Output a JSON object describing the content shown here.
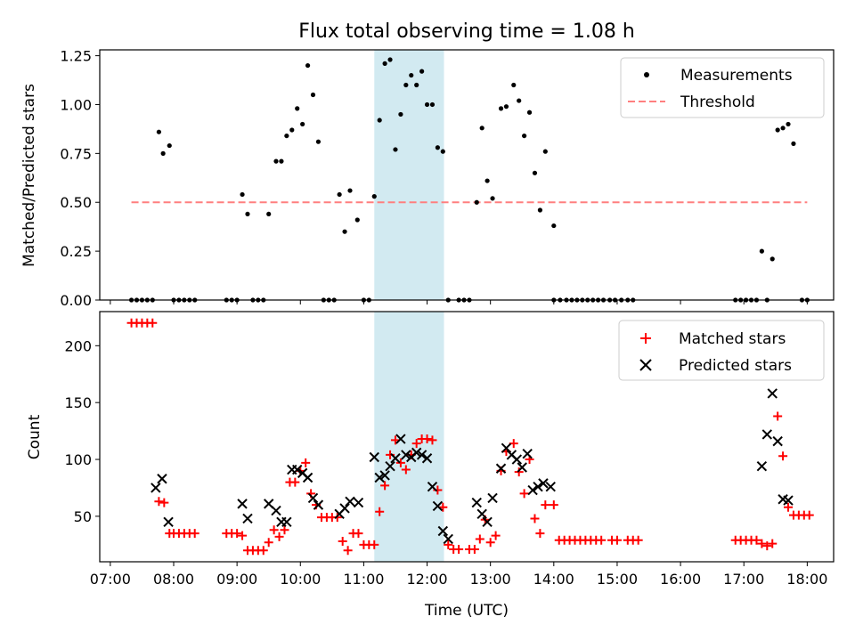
{
  "chart_data": [
    {
      "type": "scatter",
      "title": "Flux total observing time = 1.08 h",
      "xlabel": "",
      "ylabel": "Matched/Predicted stars",
      "ylim": [
        0,
        1.28
      ],
      "xlim": [
        "06:50",
        "18:25"
      ],
      "yticks": [
        "0.00",
        "0.25",
        "0.50",
        "0.75",
        "1.00",
        "1.25"
      ],
      "highlight_span": {
        "start": "11:10",
        "end": "12:16"
      },
      "legend_position": "top-right",
      "series": [
        {
          "name": "Measurements",
          "marker": "dot",
          "color": "#000000",
          "points": [
            [
              "07:20",
              0
            ],
            [
              "07:25",
              0
            ],
            [
              "07:30",
              0
            ],
            [
              "07:35",
              0
            ],
            [
              "07:40",
              0
            ],
            [
              "07:46",
              0.86
            ],
            [
              "07:50",
              0.75
            ],
            [
              "07:56",
              0.79
            ],
            [
              "08:00",
              0
            ],
            [
              "08:05",
              0
            ],
            [
              "08:10",
              0
            ],
            [
              "08:15",
              0
            ],
            [
              "08:20",
              0
            ],
            [
              "08:50",
              0
            ],
            [
              "08:55",
              0
            ],
            [
              "09:00",
              0
            ],
            [
              "09:05",
              0.54
            ],
            [
              "09:10",
              0.44
            ],
            [
              "09:15",
              0
            ],
            [
              "09:20",
              0
            ],
            [
              "09:25",
              0
            ],
            [
              "09:30",
              0.44
            ],
            [
              "09:37",
              0.71
            ],
            [
              "09:42",
              0.71
            ],
            [
              "09:47",
              0.84
            ],
            [
              "09:52",
              0.87
            ],
            [
              "09:57",
              0.98
            ],
            [
              "10:02",
              0.9
            ],
            [
              "10:07",
              1.2
            ],
            [
              "10:12",
              1.05
            ],
            [
              "10:17",
              0.81
            ],
            [
              "10:22",
              0
            ],
            [
              "10:27",
              0
            ],
            [
              "10:32",
              0
            ],
            [
              "10:37",
              0.54
            ],
            [
              "10:42",
              0.35
            ],
            [
              "10:47",
              0.56
            ],
            [
              "10:54",
              0.41
            ],
            [
              "11:00",
              0
            ],
            [
              "11:05",
              0
            ],
            [
              "11:10",
              0.53
            ],
            [
              "11:15",
              0.92
            ],
            [
              "11:20",
              1.21
            ],
            [
              "11:25",
              1.23
            ],
            [
              "11:30",
              0.77
            ],
            [
              "11:35",
              0.95
            ],
            [
              "11:40",
              1.1
            ],
            [
              "11:45",
              1.15
            ],
            [
              "11:50",
              1.1
            ],
            [
              "11:55",
              1.17
            ],
            [
              "12:00",
              1
            ],
            [
              "12:05",
              1
            ],
            [
              "12:10",
              0.78
            ],
            [
              "12:15",
              0.76
            ],
            [
              "12:20",
              0
            ],
            [
              "12:30",
              0
            ],
            [
              "12:35",
              0
            ],
            [
              "12:40",
              0
            ],
            [
              "12:47",
              0.5
            ],
            [
              "12:52",
              0.88
            ],
            [
              "12:57",
              0.61
            ],
            [
              "13:02",
              0.52
            ],
            [
              "13:10",
              0.98
            ],
            [
              "13:15",
              0.99
            ],
            [
              "13:22",
              1.1
            ],
            [
              "13:27",
              1.02
            ],
            [
              "13:32",
              0.84
            ],
            [
              "13:37",
              0.96
            ],
            [
              "13:42",
              0.65
            ],
            [
              "13:47",
              0.46
            ],
            [
              "13:52",
              0.76
            ],
            [
              "14:00",
              0.38
            ],
            [
              "14:00",
              0
            ],
            [
              "14:06",
              0
            ],
            [
              "14:12",
              0
            ],
            [
              "14:17",
              0
            ],
            [
              "14:22",
              0
            ],
            [
              "14:27",
              0
            ],
            [
              "14:32",
              0
            ],
            [
              "14:37",
              0
            ],
            [
              "14:42",
              0
            ],
            [
              "14:47",
              0
            ],
            [
              "14:53",
              0
            ],
            [
              "14:58",
              0
            ],
            [
              "15:04",
              0
            ],
            [
              "15:10",
              0
            ],
            [
              "15:15",
              0
            ],
            [
              "16:52",
              0
            ],
            [
              "16:57",
              0
            ],
            [
              "17:02",
              0
            ],
            [
              "17:07",
              0
            ],
            [
              "17:12",
              0
            ],
            [
              "17:17",
              0.25
            ],
            [
              "17:22",
              0
            ],
            [
              "17:27",
              0.21
            ],
            [
              "17:32",
              0.87
            ],
            [
              "17:37",
              0.88
            ],
            [
              "17:42",
              0.9
            ],
            [
              "17:47",
              0.8
            ],
            [
              "17:55",
              0
            ],
            [
              "18:00",
              0
            ]
          ]
        },
        {
          "name": "Threshold",
          "marker": "dashed-line",
          "color": "#ff7f7f",
          "points": [
            [
              "07:20",
              0.5
            ],
            [
              "18:00",
              0.5
            ]
          ]
        }
      ]
    },
    {
      "type": "scatter",
      "title": "",
      "xlabel": "Time (UTC)",
      "ylabel": "Count",
      "ylim": [
        10,
        230
      ],
      "xlim": [
        "06:50",
        "18:25"
      ],
      "yticks": [
        "50",
        "100",
        "150",
        "200"
      ],
      "xticks": [
        "07:00",
        "08:00",
        "09:00",
        "10:00",
        "11:00",
        "12:00",
        "13:00",
        "14:00",
        "15:00",
        "16:00",
        "17:00",
        "18:00"
      ],
      "highlight_span": {
        "start": "11:10",
        "end": "12:16"
      },
      "legend_position": "top-right",
      "series": [
        {
          "name": "Matched stars",
          "marker": "plus",
          "color": "#ff0000",
          "points": [
            [
              "07:20",
              220
            ],
            [
              "07:25",
              220
            ],
            [
              "07:30",
              220
            ],
            [
              "07:35",
              220
            ],
            [
              "07:40",
              220
            ],
            [
              "07:46",
              63
            ],
            [
              "07:51",
              62
            ],
            [
              "07:56",
              35
            ],
            [
              "08:00",
              35
            ],
            [
              "08:05",
              35
            ],
            [
              "08:10",
              35
            ],
            [
              "08:15",
              35
            ],
            [
              "08:20",
              35
            ],
            [
              "08:50",
              35
            ],
            [
              "08:55",
              35
            ],
            [
              "09:00",
              35
            ],
            [
              "09:05",
              33
            ],
            [
              "09:10",
              20
            ],
            [
              "09:15",
              20
            ],
            [
              "09:20",
              20
            ],
            [
              "09:25",
              20
            ],
            [
              "09:30",
              27
            ],
            [
              "09:35",
              38
            ],
            [
              "09:40",
              32
            ],
            [
              "09:45",
              38
            ],
            [
              "09:50",
              80
            ],
            [
              "09:55",
              80
            ],
            [
              "10:00",
              90
            ],
            [
              "10:05",
              97
            ],
            [
              "10:10",
              70
            ],
            [
              "10:15",
              60
            ],
            [
              "10:20",
              49
            ],
            [
              "10:25",
              49
            ],
            [
              "10:30",
              49
            ],
            [
              "10:35",
              49
            ],
            [
              "10:40",
              28
            ],
            [
              "10:45",
              20
            ],
            [
              "10:50",
              35
            ],
            [
              "10:55",
              35
            ],
            [
              "11:00",
              25
            ],
            [
              "11:05",
              25
            ],
            [
              "11:10",
              25
            ],
            [
              "11:15",
              54
            ],
            [
              "11:20",
              77
            ],
            [
              "11:25",
              104
            ],
            [
              "11:30",
              117
            ],
            [
              "11:35",
              97
            ],
            [
              "11:40",
              91
            ],
            [
              "11:45",
              104
            ],
            [
              "11:50",
              114
            ],
            [
              "11:55",
              118
            ],
            [
              "12:00",
              118
            ],
            [
              "12:05",
              117
            ],
            [
              "12:10",
              73
            ],
            [
              "12:15",
              58
            ],
            [
              "12:20",
              25
            ],
            [
              "12:25",
              21
            ],
            [
              "12:30",
              21
            ],
            [
              "12:40",
              21
            ],
            [
              "12:45",
              21
            ],
            [
              "12:50",
              30
            ],
            [
              "12:55",
              47
            ],
            [
              "13:00",
              27
            ],
            [
              "13:05",
              33
            ],
            [
              "13:10",
              90
            ],
            [
              "13:15",
              107
            ],
            [
              "13:22",
              114
            ],
            [
              "13:27",
              89
            ],
            [
              "13:32",
              70
            ],
            [
              "13:37",
              100
            ],
            [
              "13:42",
              48
            ],
            [
              "13:47",
              35
            ],
            [
              "13:52",
              60
            ],
            [
              "14:00",
              60
            ],
            [
              "14:05",
              29
            ],
            [
              "14:10",
              29
            ],
            [
              "14:15",
              29
            ],
            [
              "14:20",
              29
            ],
            [
              "14:25",
              29
            ],
            [
              "14:30",
              29
            ],
            [
              "14:35",
              29
            ],
            [
              "14:40",
              29
            ],
            [
              "14:45",
              29
            ],
            [
              "14:55",
              29
            ],
            [
              "15:00",
              29
            ],
            [
              "15:10",
              29
            ],
            [
              "15:15",
              29
            ],
            [
              "15:20",
              29
            ],
            [
              "16:52",
              29
            ],
            [
              "16:57",
              29
            ],
            [
              "17:02",
              29
            ],
            [
              "17:07",
              29
            ],
            [
              "17:12",
              29
            ],
            [
              "17:17",
              26
            ],
            [
              "17:22",
              24
            ],
            [
              "17:27",
              26
            ],
            [
              "17:32",
              138
            ],
            [
              "17:37",
              103
            ],
            [
              "17:42",
              58
            ],
            [
              "17:47",
              51
            ],
            [
              "17:52",
              51
            ],
            [
              "17:57",
              51
            ],
            [
              "18:02",
              51
            ]
          ]
        },
        {
          "name": "Predicted stars",
          "marker": "x",
          "color": "#000000",
          "points": [
            [
              "07:43",
              75
            ],
            [
              "07:49",
              83
            ],
            [
              "07:55",
              45
            ],
            [
              "09:05",
              61
            ],
            [
              "09:10",
              48
            ],
            [
              "09:30",
              61
            ],
            [
              "09:37",
              55
            ],
            [
              "09:42",
              45
            ],
            [
              "09:47",
              45
            ],
            [
              "09:52",
              91
            ],
            [
              "09:57",
              91
            ],
            [
              "10:02",
              88
            ],
            [
              "10:07",
              84
            ],
            [
              "10:12",
              66
            ],
            [
              "10:17",
              60
            ],
            [
              "10:37",
              52
            ],
            [
              "10:42",
              57
            ],
            [
              "10:47",
              63
            ],
            [
              "10:55",
              62
            ],
            [
              "11:10",
              102
            ],
            [
              "11:15",
              84
            ],
            [
              "11:20",
              86
            ],
            [
              "11:25",
              94
            ],
            [
              "11:30",
              101
            ],
            [
              "11:35",
              118
            ],
            [
              "11:40",
              104
            ],
            [
              "11:45",
              102
            ],
            [
              "11:50",
              106
            ],
            [
              "11:55",
              104
            ],
            [
              "12:00",
              101
            ],
            [
              "12:05",
              76
            ],
            [
              "12:10",
              59
            ],
            [
              "12:15",
              37
            ],
            [
              "12:20",
              30
            ],
            [
              "12:47",
              62
            ],
            [
              "12:52",
              52
            ],
            [
              "12:57",
              45
            ],
            [
              "13:02",
              66
            ],
            [
              "13:10",
              92
            ],
            [
              "13:15",
              110
            ],
            [
              "13:20",
              104
            ],
            [
              "13:25",
              100
            ],
            [
              "13:30",
              93
            ],
            [
              "13:35",
              105
            ],
            [
              "13:40",
              73
            ],
            [
              "13:45",
              76
            ],
            [
              "13:50",
              79
            ],
            [
              "13:57",
              76
            ],
            [
              "17:17",
              94
            ],
            [
              "17:22",
              122
            ],
            [
              "17:27",
              158
            ],
            [
              "17:32",
              116
            ],
            [
              "17:37",
              65
            ],
            [
              "17:42",
              64
            ]
          ]
        }
      ]
    }
  ]
}
